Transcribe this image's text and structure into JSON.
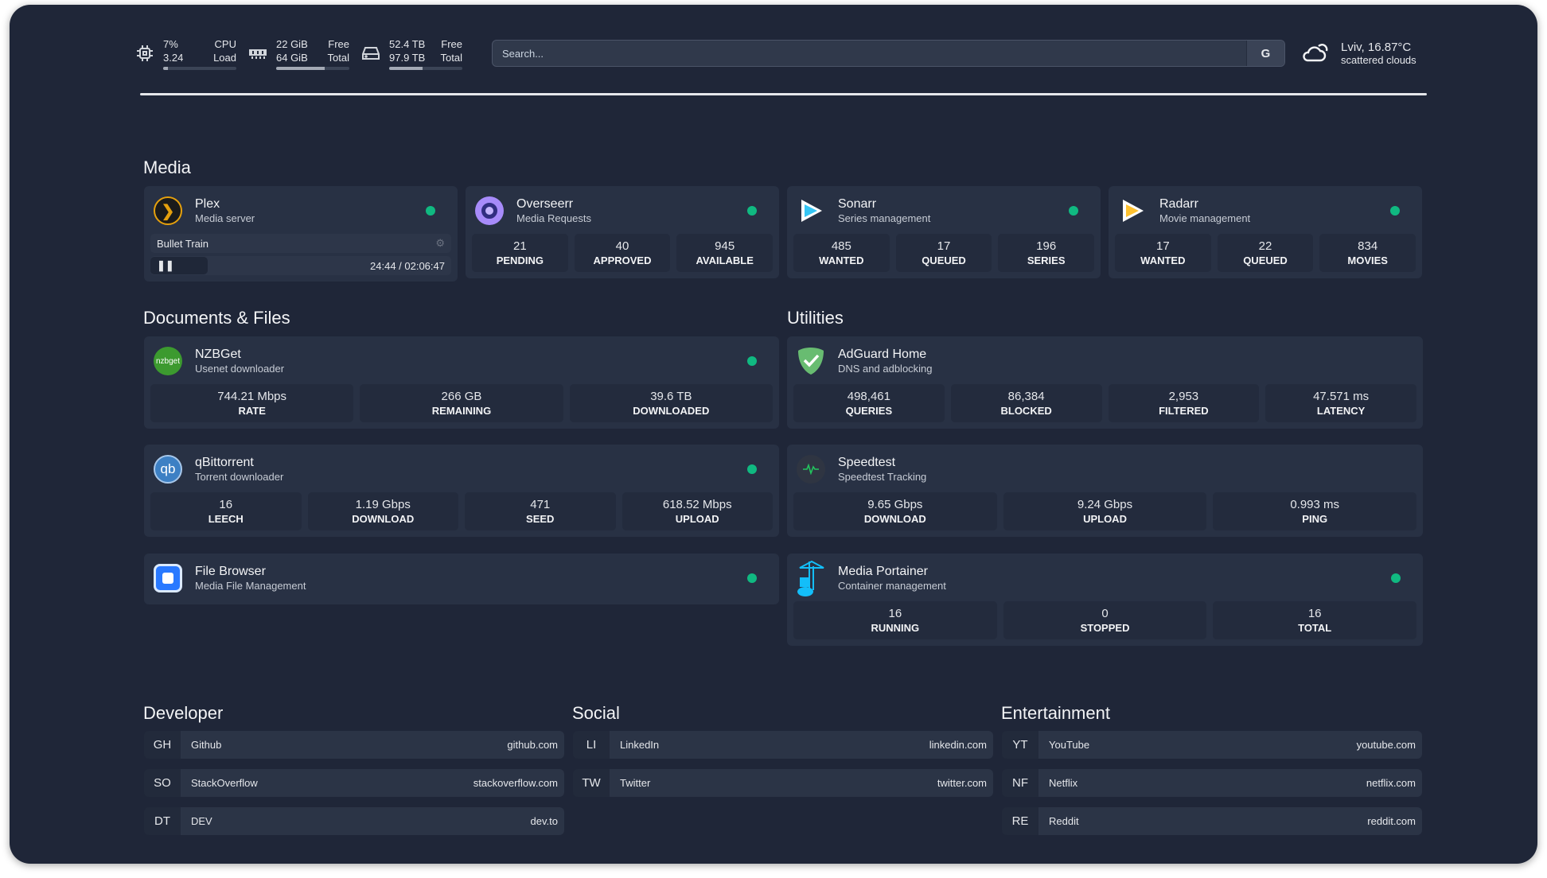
{
  "resources": {
    "cpu": {
      "icon": "cpu-icon",
      "value1": "7%",
      "label1": "CPU",
      "value2": "3.24",
      "label2": "Load",
      "usage_percent": 7
    },
    "memory": {
      "icon": "memory-icon",
      "value1": "22 GiB",
      "label1": "Free",
      "value2": "64 GiB",
      "label2": "Total",
      "usage_percent": 66
    },
    "disk": {
      "icon": "disk-icon",
      "value1": "52.4 TB",
      "label1": "Free",
      "value2": "97.9 TB",
      "label2": "Total",
      "usage_percent": 46
    }
  },
  "search": {
    "placeholder": "Search...",
    "engine_label": "G"
  },
  "weather": {
    "icon": "cloud-icon",
    "location_temp": "Lviv, 16.87°C",
    "condition": "scattered clouds"
  },
  "colors": {
    "background": "#1f2638",
    "card": "#283144",
    "status_ok": "#10b981"
  },
  "sections": {
    "media": "Media",
    "docs": "Documents & Files",
    "utilities": "Utilities",
    "developer": "Developer",
    "social": "Social",
    "entertainment": "Entertainment"
  },
  "media": [
    {
      "name": "Plex",
      "desc": "Media server",
      "now_playing": {
        "title": "Bullet Train",
        "time": "24:44 / 02:06:47",
        "state": "paused"
      }
    },
    {
      "name": "Overseerr",
      "desc": "Media Requests",
      "stats": [
        {
          "v": "21",
          "l": "PENDING"
        },
        {
          "v": "40",
          "l": "APPROVED"
        },
        {
          "v": "945",
          "l": "AVAILABLE"
        }
      ]
    },
    {
      "name": "Sonarr",
      "desc": "Series management",
      "stats": [
        {
          "v": "485",
          "l": "WANTED"
        },
        {
          "v": "17",
          "l": "QUEUED"
        },
        {
          "v": "196",
          "l": "SERIES"
        }
      ]
    },
    {
      "name": "Radarr",
      "desc": "Movie management",
      "stats": [
        {
          "v": "17",
          "l": "WANTED"
        },
        {
          "v": "22",
          "l": "QUEUED"
        },
        {
          "v": "834",
          "l": "MOVIES"
        }
      ]
    }
  ],
  "docs": [
    {
      "name": "NZBGet",
      "desc": "Usenet downloader",
      "logo_text": "nzbget",
      "stats": [
        {
          "v": "744.21 Mbps",
          "l": "RATE"
        },
        {
          "v": "266 GB",
          "l": "REMAINING"
        },
        {
          "v": "39.6 TB",
          "l": "DOWNLOADED"
        }
      ]
    },
    {
      "name": "qBittorrent",
      "desc": "Torrent downloader",
      "logo_text": "qb",
      "stats": [
        {
          "v": "16",
          "l": "LEECH"
        },
        {
          "v": "1.19 Gbps",
          "l": "DOWNLOAD"
        },
        {
          "v": "471",
          "l": "SEED"
        },
        {
          "v": "618.52 Mbps",
          "l": "UPLOAD"
        }
      ]
    },
    {
      "name": "File Browser",
      "desc": "Media File Management"
    }
  ],
  "utilities": [
    {
      "name": "AdGuard Home",
      "desc": "DNS and adblocking",
      "stats": [
        {
          "v": "498,461",
          "l": "QUERIES"
        },
        {
          "v": "86,384",
          "l": "BLOCKED"
        },
        {
          "v": "2,953",
          "l": "FILTERED"
        },
        {
          "v": "47.571 ms",
          "l": "LATENCY"
        }
      ]
    },
    {
      "name": "Speedtest",
      "desc": "Speedtest Tracking",
      "stats": [
        {
          "v": "9.65 Gbps",
          "l": "DOWNLOAD"
        },
        {
          "v": "9.24 Gbps",
          "l": "UPLOAD"
        },
        {
          "v": "0.993 ms",
          "l": "PING"
        }
      ]
    },
    {
      "name": "Media Portainer",
      "desc": "Container management",
      "stats": [
        {
          "v": "16",
          "l": "RUNNING"
        },
        {
          "v": "0",
          "l": "STOPPED"
        },
        {
          "v": "16",
          "l": "TOTAL"
        }
      ]
    }
  ],
  "developer": [
    {
      "abbr": "GH",
      "name": "Github",
      "url": "github.com"
    },
    {
      "abbr": "SO",
      "name": "StackOverflow",
      "url": "stackoverflow.com"
    },
    {
      "abbr": "DT",
      "name": "DEV",
      "url": "dev.to"
    }
  ],
  "social": [
    {
      "abbr": "LI",
      "name": "LinkedIn",
      "url": "linkedin.com"
    },
    {
      "abbr": "TW",
      "name": "Twitter",
      "url": "twitter.com"
    }
  ],
  "entertainment": [
    {
      "abbr": "YT",
      "name": "YouTube",
      "url": "youtube.com"
    },
    {
      "abbr": "NF",
      "name": "Netflix",
      "url": "netflix.com"
    },
    {
      "abbr": "RE",
      "name": "Reddit",
      "url": "reddit.com"
    }
  ]
}
